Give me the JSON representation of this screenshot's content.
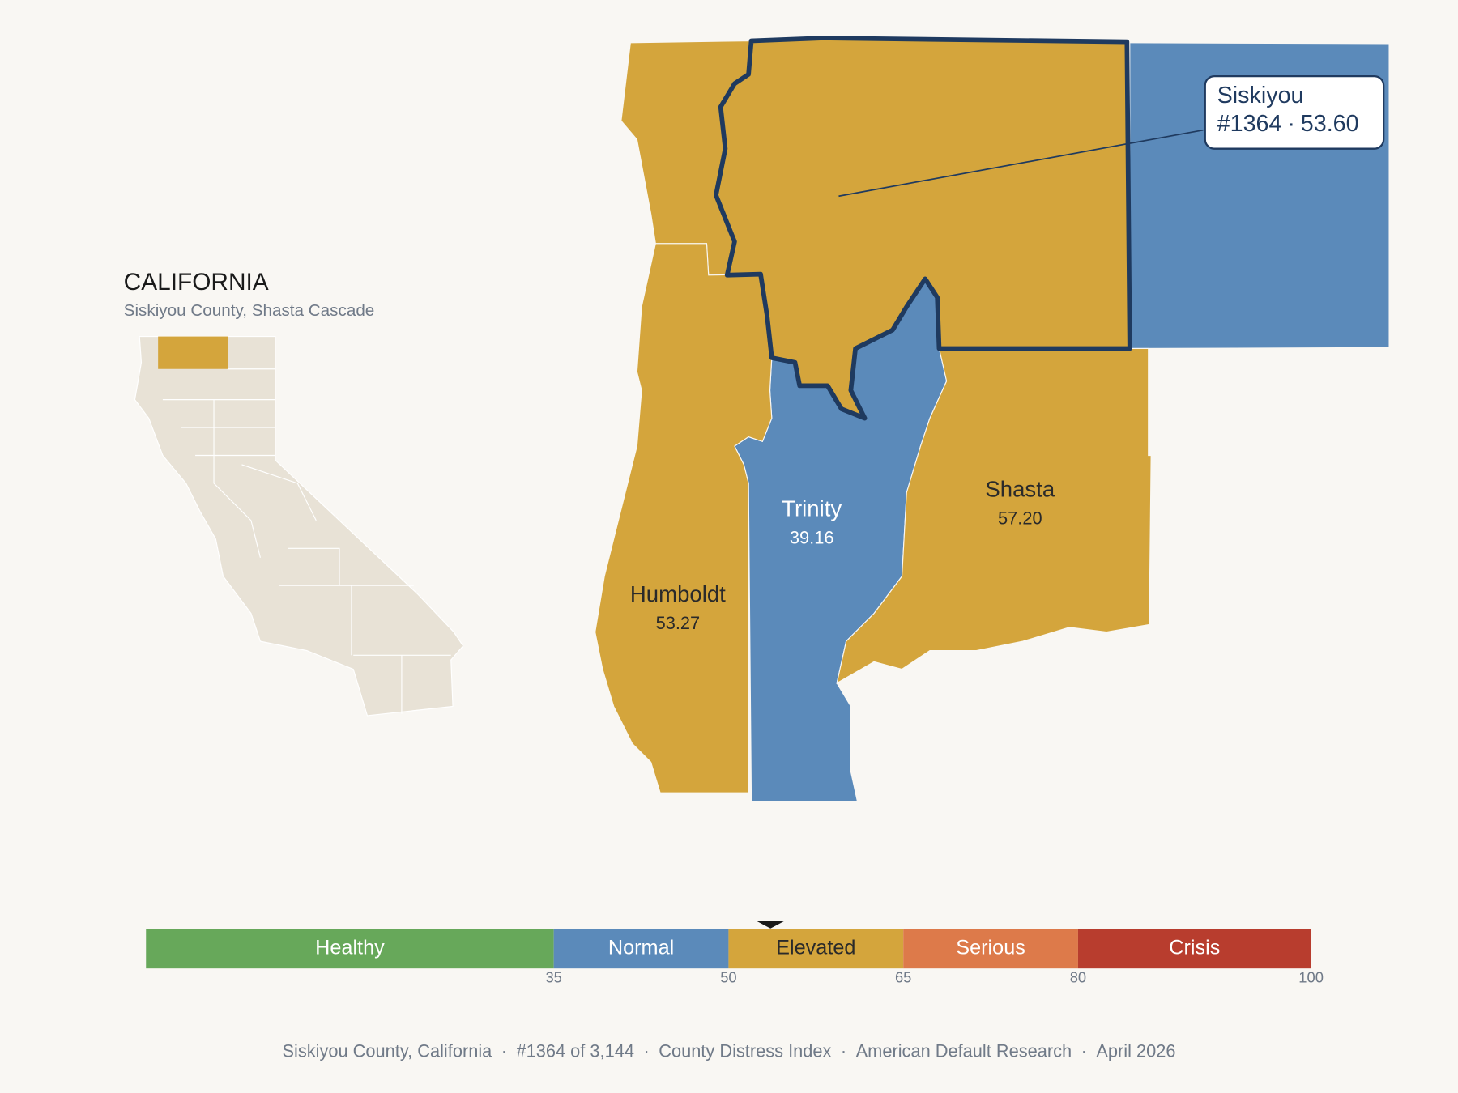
{
  "inset": {
    "title": "CALIFORNIA",
    "subtitle": "Siskiyou County, Shasta Cascade"
  },
  "separator": "·",
  "counties": [
    {
      "name": "Siskiyou",
      "value": 53.6,
      "label": "53.60",
      "rank": "#1364"
    },
    {
      "name": "Trinity",
      "value": 39.16,
      "label": "39.16"
    },
    {
      "name": "Shasta",
      "value": 57.2,
      "label": "57.20"
    },
    {
      "name": "Humboldt",
      "value": 53.27,
      "label": "53.27"
    }
  ],
  "scale": {
    "range": [
      0,
      100
    ],
    "ticks": [
      35,
      50,
      65,
      80,
      100
    ],
    "bands": [
      {
        "label": "Healthy",
        "color": "#67a85a",
        "text_color": "#ffffff"
      },
      {
        "label": "Normal",
        "color": "#5b8aba",
        "text_color": "#ffffff"
      },
      {
        "label": "Elevated",
        "color": "#d4a53c",
        "text_color": "#2a2a2a"
      },
      {
        "label": "Serious",
        "color": "#dd7a4a",
        "text_color": "#ffffff"
      },
      {
        "label": "Crisis",
        "color": "#b83d2e",
        "text_color": "#ffffff"
      }
    ]
  },
  "footer": [
    "Siskiyou County, California",
    "#1364 of 3,144",
    "County Distress Index",
    "American Default Research",
    "April 2026"
  ]
}
